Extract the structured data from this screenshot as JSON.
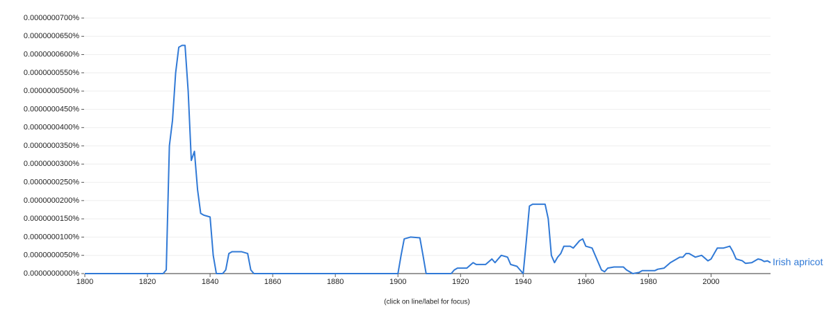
{
  "chart_data": {
    "type": "line",
    "note": "(click on line/label for focus)",
    "xlim": [
      1800,
      2019
    ],
    "xticks": [
      1800,
      1820,
      1840,
      1860,
      1880,
      1900,
      1920,
      1940,
      1960,
      1980,
      2000
    ],
    "ylim": [
      0,
      7e-08
    ],
    "yticks": [
      {
        "value": 0,
        "label": "0.0000000000%"
      },
      {
        "value": 5e-09,
        "label": "0.0000000050%"
      },
      {
        "value": 1e-08,
        "label": "0.0000000100%"
      },
      {
        "value": 1.5e-08,
        "label": "0.0000000150%"
      },
      {
        "value": 2e-08,
        "label": "0.0000000200%"
      },
      {
        "value": 2.5e-08,
        "label": "0.0000000250%"
      },
      {
        "value": 3e-08,
        "label": "0.0000000300%"
      },
      {
        "value": 3.5e-08,
        "label": "0.0000000350%"
      },
      {
        "value": 4e-08,
        "label": "0.0000000400%"
      },
      {
        "value": 4.5e-08,
        "label": "0.0000000450%"
      },
      {
        "value": 5e-08,
        "label": "0.0000000500%"
      },
      {
        "value": 5.5e-08,
        "label": "0.0000000550%"
      },
      {
        "value": 6e-08,
        "label": "0.0000000600%"
      },
      {
        "value": 6.5e-08,
        "label": "0.0000000650%"
      },
      {
        "value": 7e-08,
        "label": "0.0000000700%"
      }
    ],
    "grid": true,
    "x": [
      1800,
      1825,
      1826,
      1827,
      1828,
      1829,
      1830,
      1831,
      1832,
      1833,
      1834,
      1835,
      1836,
      1837,
      1838,
      1840,
      1841,
      1842,
      1844,
      1845,
      1846,
      1847,
      1850,
      1852,
      1853,
      1854,
      1900,
      1901,
      1902,
      1904,
      1907,
      1908,
      1909,
      1917,
      1918,
      1919,
      1922,
      1924,
      1925,
      1928,
      1930,
      1931,
      1933,
      1935,
      1936,
      1938,
      1940,
      1941,
      1942,
      1943,
      1947,
      1948,
      1949,
      1950,
      1951,
      1952,
      1953,
      1955,
      1956,
      1958,
      1959,
      1960,
      1962,
      1963,
      1965,
      1966,
      1967,
      1969,
      1972,
      1973,
      1975,
      1977,
      1978,
      1982,
      1983,
      1985,
      1987,
      1990,
      1991,
      1992,
      1993,
      1995,
      1997,
      1999,
      2000,
      2002,
      2004,
      2006,
      2007,
      2008,
      2010,
      2011,
      2013,
      2015,
      2016,
      2017,
      2018,
      2019
    ],
    "series": [
      {
        "name": "Irish apricot",
        "color": "#3079d6",
        "values": [
          0,
          0,
          1e-09,
          3.5e-08,
          4.2e-08,
          5.5e-08,
          6.2e-08,
          6.25e-08,
          6.25e-08,
          5e-08,
          3.1e-08,
          3.35e-08,
          2.3e-08,
          1.65e-08,
          1.6e-08,
          1.55e-08,
          5e-09,
          0,
          0,
          1e-09,
          5.5e-09,
          6e-09,
          6e-09,
          5.5e-09,
          1e-09,
          0,
          0,
          5e-09,
          9.5e-09,
          1e-08,
          9.8e-09,
          5e-09,
          0,
          0,
          1e-09,
          1.5e-09,
          1.5e-09,
          3e-09,
          2.5e-09,
          2.5e-09,
          4e-09,
          3e-09,
          5e-09,
          4.5e-09,
          2.5e-09,
          2e-09,
          0,
          9e-09,
          1.85e-08,
          1.9e-08,
          1.9e-08,
          1.5e-08,
          5e-09,
          3e-09,
          4.5e-09,
          5.5e-09,
          7.5e-09,
          7.5e-09,
          7e-09,
          9e-09,
          9.5e-09,
          7.5e-09,
          7e-09,
          5e-09,
          1e-09,
          5e-10,
          1.5e-09,
          1.8e-09,
          1.8e-09,
          1e-09,
          0,
          3e-10,
          8e-10,
          8e-10,
          1.2e-09,
          1.5e-09,
          3e-09,
          4.5e-09,
          4.5e-09,
          5.5e-09,
          5.5e-09,
          4.5e-09,
          5e-09,
          3.5e-09,
          4e-09,
          7e-09,
          7e-09,
          7.5e-09,
          6e-09,
          4e-09,
          3.5e-09,
          2.8e-09,
          3e-09,
          4e-09,
          3.8e-09,
          3.3e-09,
          3.5e-09,
          3e-09
        ]
      }
    ]
  }
}
